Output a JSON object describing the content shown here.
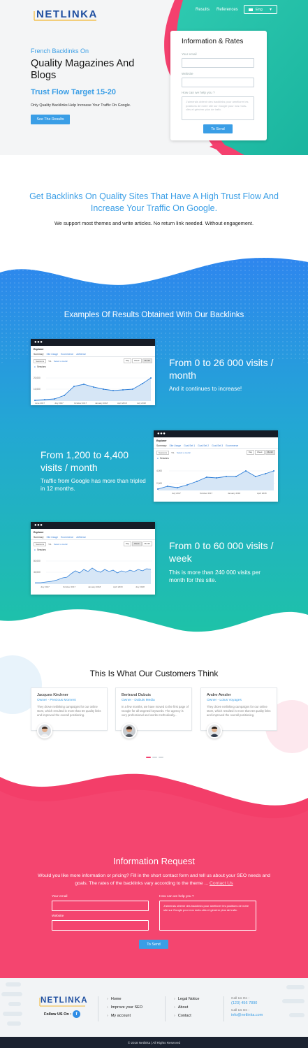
{
  "header": {
    "logo": "NETLINKA",
    "nav": [
      "Results",
      "References"
    ],
    "language": "Eng"
  },
  "hero": {
    "kicker": "French Backlinks On",
    "title": "Quality Magazines And Blogs",
    "trust": "Trust Flow Target 15-20",
    "subtitle": "Only Quality Backlinks Help Increase Your Traffic On Google.",
    "button": "See The Results"
  },
  "form": {
    "title": "Information & Rates",
    "email_label": "Your email",
    "website_label": "Website",
    "help_label": "How can we help you ?",
    "help_placeholder": "J'aimerais obtenir des backlinks pour améliorer les positions de notre site sur Google pour nos mots-clés et générer plus de trafic.",
    "button": "To Send"
  },
  "intro": {
    "title": "Get Backlinks On Quality Sites That Have A High Trust Flow And Increase Your Traffic On Google.",
    "subtitle": "We support most themes and write articles. No return link needed. Without engagement."
  },
  "results": {
    "title": "Examples Of Results Obtained With Our Backlinks",
    "items": [
      {
        "headline": "From 0 to 26 000 visits / month",
        "note": "And it continues to increase!",
        "screenshot": {
          "header": "Explorer",
          "tabs": [
            "Summary",
            "Site Usage",
            "Ecommerce",
            "AdSense"
          ],
          "metric": "Sessions",
          "compare": "Select a metric",
          "periods": [
            "Day",
            "Week",
            "Month"
          ],
          "y_ticks": [
            "20,000",
            "10,000"
          ],
          "x_ticks": [
            "June 2017",
            "July 2017",
            "October 2017",
            "January 2018",
            "April 2018",
            "July 2018"
          ]
        }
      },
      {
        "headline": "From 1,200 to 4,400 visits / month",
        "note": "Traffic from Google has more than tripled in 12 months.",
        "screenshot": {
          "header": "Explorer",
          "tabs": [
            "Summary",
            "Site Usage",
            "Goal Set 1",
            "Goal Set 2",
            "Goal Set 3",
            "Ecommerce"
          ],
          "metric": "Sessions",
          "compare": "Select a metric",
          "periods": [
            "Day",
            "Week",
            "Month"
          ],
          "y_ticks": [
            "4,000",
            "2,000"
          ],
          "x_ticks": [
            "July 2017",
            "October 2017",
            "January 2018",
            "April 2018"
          ]
        }
      },
      {
        "headline": "From 0 to 60 000 visits / week",
        "note": "This is more than 240 000 visits per month for this site.",
        "screenshot": {
          "header": "Explorer",
          "tabs": [
            "Summary",
            "Site Usage",
            "Ecommerce",
            "AdSense"
          ],
          "metric": "Sessions",
          "compare": "Select a metric",
          "periods": [
            "Day",
            "Week",
            "Month"
          ],
          "y_ticks": [
            "80,000",
            "40,000"
          ],
          "x_ticks": [
            "July 2017",
            "October 2017",
            "January 2018",
            "April 2018",
            "July 2018"
          ]
        }
      }
    ]
  },
  "testimonials": {
    "title": "This Is What Our Customers Think",
    "cards": [
      {
        "name": "Jacques Kirchner",
        "role": "Owner - Precious Moment",
        "text": "They drove netlinking campaigns for our online store, which resulted in more than 50 quality links and improved the overall positioning."
      },
      {
        "name": "Bertrand Dubuis",
        "role": "Owner - Dubuis Media",
        "text": "In a few months, we have moved to the first page of Google for all targeted keywords. The agency is very professional and works methodically..."
      },
      {
        "name": "Andre Amsler",
        "role": "Owner - Lotus Voyages",
        "text": "They drove netlinking campaigns for our online store, which resulted in more than 50 quality links and improved the overall positioning."
      }
    ]
  },
  "info_request": {
    "title": "Information Request",
    "text": "Would you like more information or pricing? Fill in the short contact form and tell us about your SEO needs and goals. The rates of the backlinks vary according to the theme ...",
    "link": "Contact Us",
    "email_label": "Your email",
    "website_label": "Website",
    "help_label": "How can we help you ?",
    "help_placeholder": "J'aimerais obtenir des backlinks pour améliorer les positions de notre site sur Google pour nos mots-clés et générer plus de trafic.",
    "button": "To Send"
  },
  "footer": {
    "logo": "NETLINKA",
    "follow": "Follow US On :",
    "col1": [
      "Home",
      "Improve your SEO",
      "My account"
    ],
    "col2": [
      "Legal Notice",
      "About",
      "Contact"
    ],
    "call_label": "Call Us On :",
    "phone": "(123) 456 7890",
    "mail_label": "Call Us On :",
    "email": "info@netlinka.com",
    "copyright": "© 2018 Netlinka | All Rights Reserved"
  },
  "colors": {
    "accent_blue": "#3a9ee6",
    "teal": "#1ec2a8",
    "pink": "#f4406e",
    "dark": "#1b2230"
  }
}
